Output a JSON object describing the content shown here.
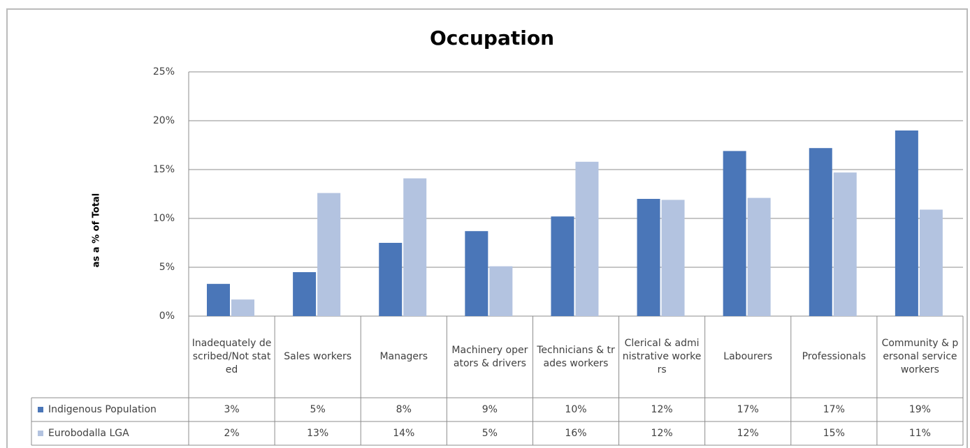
{
  "chart_data": {
    "type": "bar",
    "title": "Occupation",
    "y_label": "as a % of Total",
    "categories": [
      "Inadequately described/Not stated",
      "Sales workers",
      "Managers",
      "Machinery operators & drivers",
      "Technicians & trades workers",
      "Clerical & administrative workers",
      "Labourers",
      "Professionals",
      "Community & personal service workers"
    ],
    "series": [
      {
        "name": "Indigenous Population",
        "color": "#4a76b8",
        "values": [
          3.3,
          4.5,
          7.5,
          8.7,
          10.2,
          12.0,
          16.9,
          17.2,
          19.0
        ],
        "value_labels": [
          "3%",
          "5%",
          "8%",
          "9%",
          "10%",
          "12%",
          "17%",
          "17%",
          "19%"
        ]
      },
      {
        "name": "Eurobodalla LGA",
        "color": "#b3c3e0",
        "values": [
          1.7,
          12.6,
          14.1,
          5.1,
          15.8,
          11.9,
          12.1,
          14.7,
          10.9
        ],
        "value_labels": [
          "2%",
          "13%",
          "14%",
          "5%",
          "16%",
          "12%",
          "12%",
          "15%",
          "11%"
        ]
      }
    ],
    "ylim": [
      0,
      25
    ],
    "yticks": [
      {
        "value": 0,
        "label": "0%"
      },
      {
        "value": 5,
        "label": "5%"
      },
      {
        "value": 10,
        "label": "10%"
      },
      {
        "value": 15,
        "label": "15%"
      },
      {
        "value": 20,
        "label": "20%"
      },
      {
        "value": 25,
        "label": "25%"
      }
    ],
    "grid": true
  }
}
